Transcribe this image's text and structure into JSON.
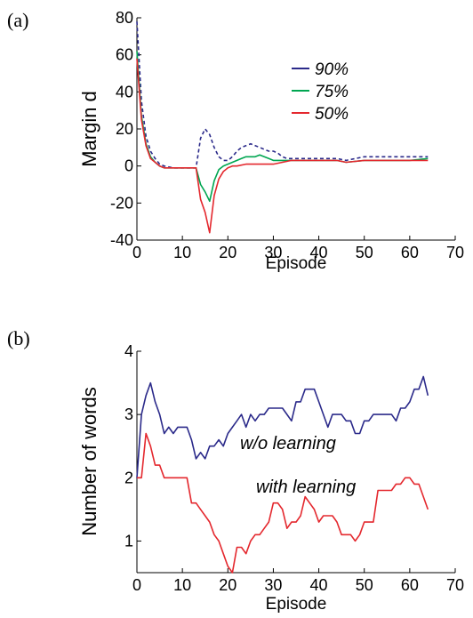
{
  "chart_data": [
    {
      "panel_label": "(a)",
      "type": "line",
      "xlabel": "Episode",
      "ylabel": "Margin d",
      "xlim": [
        0,
        70
      ],
      "ylim": [
        -40,
        80
      ],
      "xticks": [
        "0",
        "10",
        "20",
        "30",
        "40",
        "50",
        "60",
        "70"
      ],
      "yticks": [
        "-40",
        "-20",
        "0",
        "20",
        "40",
        "60",
        "80"
      ],
      "legend_position": "top-right",
      "series": [
        {
          "name": "90%",
          "color": "#2b2a8a",
          "dash": true,
          "x": [
            0,
            1,
            2,
            3,
            4,
            5,
            6,
            8,
            10,
            13,
            14,
            15,
            16,
            17,
            18,
            19,
            20,
            21,
            22,
            23,
            24,
            25,
            26,
            27,
            28,
            29,
            30,
            31,
            32,
            33,
            34,
            36,
            40,
            44,
            46,
            48,
            50,
            55,
            60,
            64
          ],
          "y": [
            78,
            35,
            16,
            8,
            4,
            1,
            0,
            -1,
            -1,
            -1,
            15,
            20,
            17,
            10,
            5,
            3,
            3,
            5,
            8,
            10,
            11,
            12,
            11,
            10,
            9,
            8,
            8,
            7,
            5,
            4,
            4,
            4,
            4,
            4,
            3,
            4,
            5,
            5,
            5,
            5
          ]
        },
        {
          "name": "75%",
          "color": "#00a651",
          "dash": false,
          "x": [
            0,
            1,
            2,
            3,
            4,
            5,
            6,
            8,
            10,
            13,
            14,
            15,
            16,
            17,
            18,
            19,
            20,
            21,
            22,
            23,
            24,
            25,
            26,
            27,
            28,
            29,
            30,
            31,
            32,
            34,
            36,
            40,
            44,
            46,
            50,
            55,
            60,
            64
          ],
          "y": [
            62,
            27,
            12,
            5,
            2,
            0,
            -1,
            -1,
            -1,
            -1,
            -10,
            -14,
            -19,
            -8,
            -2,
            0,
            1,
            2,
            3,
            4,
            5,
            5,
            5,
            6,
            5,
            4,
            3,
            3,
            3,
            3,
            3,
            3,
            3,
            2,
            3,
            3,
            3,
            4
          ]
        },
        {
          "name": "50%",
          "color": "#e4282e",
          "dash": false,
          "x": [
            0,
            1,
            2,
            3,
            4,
            5,
            6,
            8,
            10,
            13,
            14,
            15,
            16,
            17,
            18,
            19,
            20,
            21,
            22,
            24,
            26,
            28,
            30,
            32,
            34,
            36,
            40,
            44,
            46,
            50,
            55,
            60,
            64
          ],
          "y": [
            58,
            25,
            11,
            4,
            2,
            0,
            -1,
            -1,
            -1,
            -1,
            -18,
            -25,
            -36,
            -16,
            -7,
            -3,
            -1,
            0,
            0,
            1,
            1,
            1,
            1,
            2,
            3,
            3,
            3,
            3,
            2,
            3,
            3,
            3,
            3
          ]
        }
      ]
    },
    {
      "panel_label": "(b)",
      "type": "line",
      "xlabel": "Episode",
      "ylabel": "Number of words",
      "xlim": [
        0,
        70
      ],
      "ylim": [
        0.5,
        4
      ],
      "xticks": [
        "0",
        "10",
        "20",
        "30",
        "40",
        "50",
        "60",
        "70"
      ],
      "yticks": [
        "1",
        "2",
        "3",
        "4"
      ],
      "series": [
        {
          "name": "w/o learning",
          "color": "#2b2a8a",
          "x": [
            0,
            1,
            2,
            3,
            4,
            5,
            6,
            7,
            8,
            9,
            10,
            11,
            12,
            13,
            14,
            15,
            16,
            17,
            18,
            19,
            20,
            21,
            22,
            23,
            24,
            25,
            26,
            27,
            28,
            29,
            30,
            31,
            32,
            33,
            34,
            35,
            36,
            37,
            38,
            39,
            40,
            41,
            42,
            43,
            44,
            45,
            46,
            47,
            48,
            49,
            50,
            51,
            52,
            53,
            54,
            55,
            56,
            57,
            58,
            59,
            60,
            61,
            62,
            63,
            64
          ],
          "y": [
            2.0,
            3.0,
            3.3,
            3.5,
            3.2,
            3.0,
            2.7,
            2.8,
            2.7,
            2.8,
            2.8,
            2.8,
            2.6,
            2.3,
            2.4,
            2.3,
            2.5,
            2.5,
            2.6,
            2.5,
            2.7,
            2.8,
            2.9,
            3.0,
            2.8,
            3.0,
            2.9,
            3.0,
            3.0,
            3.1,
            3.1,
            3.1,
            3.1,
            3.0,
            2.9,
            3.2,
            3.2,
            3.4,
            3.4,
            3.4,
            3.2,
            3.0,
            2.8,
            3.0,
            3.0,
            3.0,
            2.9,
            2.9,
            2.7,
            2.7,
            2.9,
            2.9,
            3.0,
            3.0,
            3.0,
            3.0,
            3.0,
            2.9,
            3.1,
            3.1,
            3.2,
            3.4,
            3.4,
            3.6,
            3.3
          ]
        },
        {
          "name": "with learning",
          "color": "#e4282e",
          "x": [
            0,
            1,
            2,
            3,
            4,
            5,
            6,
            7,
            8,
            9,
            10,
            11,
            12,
            13,
            14,
            15,
            16,
            17,
            18,
            19,
            20,
            21,
            22,
            23,
            24,
            25,
            26,
            27,
            28,
            29,
            30,
            31,
            32,
            33,
            34,
            35,
            36,
            37,
            38,
            39,
            40,
            41,
            42,
            43,
            44,
            45,
            46,
            47,
            48,
            49,
            50,
            51,
            52,
            53,
            54,
            55,
            56,
            57,
            58,
            59,
            60,
            61,
            62,
            63,
            64
          ],
          "y": [
            2.0,
            2.0,
            2.7,
            2.5,
            2.2,
            2.2,
            2.0,
            2.0,
            2.0,
            2.0,
            2.0,
            2.0,
            1.6,
            1.6,
            1.5,
            1.4,
            1.3,
            1.1,
            1.0,
            0.8,
            0.6,
            0.5,
            0.9,
            0.9,
            0.8,
            1.0,
            1.1,
            1.1,
            1.2,
            1.3,
            1.6,
            1.6,
            1.5,
            1.2,
            1.3,
            1.3,
            1.4,
            1.7,
            1.6,
            1.5,
            1.3,
            1.4,
            1.4,
            1.4,
            1.3,
            1.1,
            1.1,
            1.1,
            1.0,
            1.1,
            1.3,
            1.3,
            1.3,
            1.8,
            1.8,
            1.8,
            1.8,
            1.9,
            1.9,
            2.0,
            2.0,
            1.9,
            1.9,
            1.7,
            1.5
          ]
        }
      ]
    }
  ]
}
